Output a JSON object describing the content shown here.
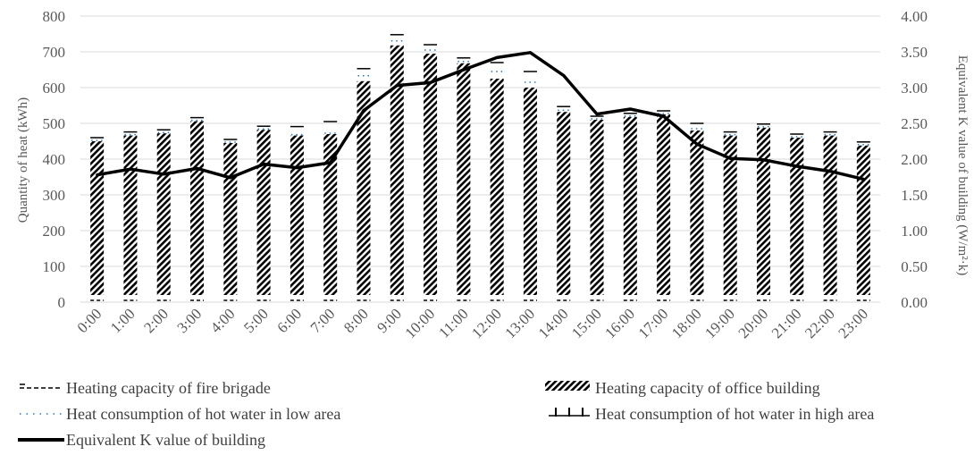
{
  "chart_data": {
    "type": "bar",
    "categories": [
      "0:00",
      "1:00",
      "2:00",
      "3:00",
      "4:00",
      "5:00",
      "6:00",
      "7:00",
      "8:00",
      "9:00",
      "10:00",
      "11:00",
      "12:00",
      "13:00",
      "14:00",
      "15:00",
      "16:00",
      "17:00",
      "18:00",
      "19:00",
      "20:00",
      "21:00",
      "22:00",
      "23:00"
    ],
    "stacked": true,
    "series": [
      {
        "name": "Heating capacity of fire brigade",
        "axis": "left",
        "pattern": "dash",
        "values": [
          10,
          10,
          10,
          10,
          10,
          10,
          10,
          10,
          10,
          10,
          10,
          10,
          10,
          10,
          10,
          10,
          10,
          10,
          10,
          10,
          10,
          10,
          10,
          10
        ]
      },
      {
        "name": "Heating capacity of office building",
        "axis": "left",
        "pattern": "diagonal-hatch",
        "values": [
          430,
          446,
          452,
          486,
          425,
          462,
          446,
          450,
          598,
          698,
          675,
          648,
          605,
          580,
          512,
          490,
          498,
          505,
          460,
          446,
          468,
          440,
          446,
          418
        ]
      },
      {
        "name": "Heat consumption of hot water in low area",
        "axis": "left",
        "pattern": "dots",
        "values": [
          5,
          5,
          5,
          5,
          5,
          5,
          5,
          5,
          30,
          25,
          20,
          10,
          40,
          30,
          10,
          5,
          5,
          5,
          10,
          5,
          5,
          5,
          5,
          5
        ]
      },
      {
        "name": "Heat consumption of hot water in high area",
        "axis": "left",
        "pattern": "vertical-lines",
        "values": [
          5,
          5,
          5,
          5,
          5,
          5,
          20,
          30,
          5,
          5,
          5,
          5,
          5,
          15,
          5,
          5,
          5,
          5,
          10,
          5,
          5,
          5,
          5,
          5
        ]
      },
      {
        "name": "Equivalent K value of building",
        "axis": "right",
        "type": "line",
        "values": [
          1.78,
          1.86,
          1.79,
          1.87,
          1.74,
          1.93,
          1.88,
          1.95,
          2.68,
          3.03,
          3.07,
          3.25,
          3.42,
          3.49,
          3.17,
          2.63,
          2.7,
          2.6,
          2.21,
          2.01,
          1.99,
          1.9,
          1.83,
          1.72
        ]
      }
    ],
    "ylabel": "Quantity of heat (kWh)",
    "y2label": "Equivalent K value of building (W/m²·k)",
    "ylim": [
      0,
      800
    ],
    "y2lim": [
      0,
      4
    ],
    "yticks": [
      "0",
      "100",
      "200",
      "300",
      "400",
      "500",
      "600",
      "700",
      "800"
    ],
    "y2ticks": [
      "0.00",
      "0.50",
      "1.00",
      "1.50",
      "2.00",
      "2.50",
      "3.00",
      "3.50",
      "4.00"
    ],
    "grid": true,
    "legend_position": "bottom",
    "colors": {
      "bars": "#000000",
      "line": "#000000",
      "grid": "#d9d9d9",
      "text": "#595959"
    }
  }
}
